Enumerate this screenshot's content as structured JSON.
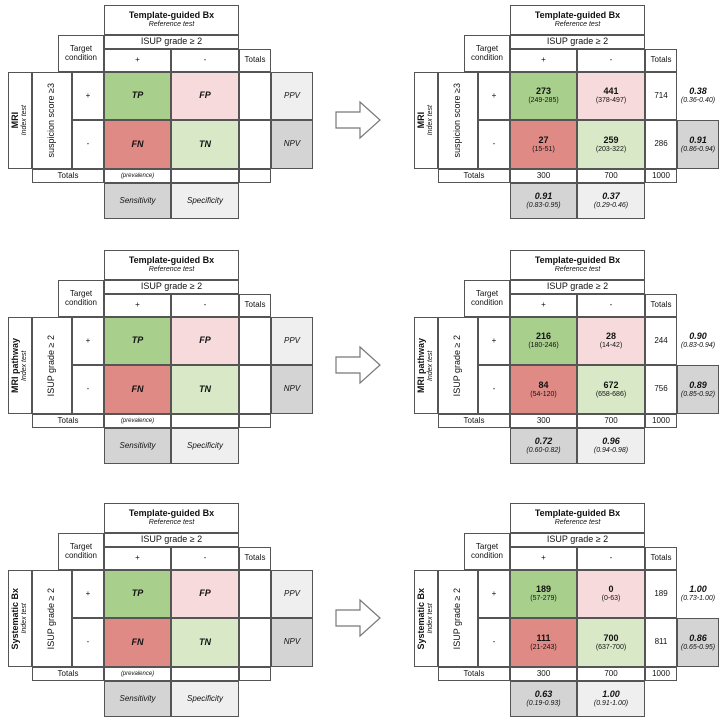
{
  "common": {
    "header_title": "Template-guided Bx",
    "header_subtitle": "Reference test",
    "header_condition": "ISUP grade ≥ 2",
    "target_label": "Target",
    "condition_label": "condition",
    "plus": "+",
    "minus": "-",
    "totals": "Totals",
    "prevalence": "(prevalence)",
    "sensitivity": "Sensitivity",
    "specificity": "Specificity",
    "ppv": "PPV",
    "npv": "NPV",
    "tp": "TP",
    "fp": "FP",
    "fn": "FN",
    "tn": "TN",
    "index_test": "Index test"
  },
  "panels": [
    {
      "name": "MRI",
      "criterion": "suspicion score ≥3",
      "tp": "273",
      "tp_ci": "(249-285)",
      "fp": "441",
      "fp_ci": "(378-497)",
      "fn": "27",
      "fn_ci": "(15-51)",
      "tn": "259",
      "tn_ci": "(203-322)",
      "row_total_pos": "714",
      "row_total_neg": "286",
      "col_total_pos": "300",
      "col_total_neg": "700",
      "grand_total": "1000",
      "ppv": "0.38",
      "ppv_ci": "(0.36-0.40)",
      "npv": "0.91",
      "npv_ci": "(0.86-0.94)",
      "sens": "0.91",
      "sens_ci": "(0.83-0.95)",
      "spec": "0.37",
      "spec_ci": "(0.29-0.46)"
    },
    {
      "name": "MRI pathway",
      "criterion": "ISUP grade ≥ 2",
      "tp": "216",
      "tp_ci": "(180-246)",
      "fp": "28",
      "fp_ci": "(14-42)",
      "fn": "84",
      "fn_ci": "(54-120)",
      "tn": "672",
      "tn_ci": "(658-686)",
      "row_total_pos": "244",
      "row_total_neg": "756",
      "col_total_pos": "300",
      "col_total_neg": "700",
      "grand_total": "1000",
      "ppv": "0.90",
      "ppv_ci": "(0.83-0.94)",
      "npv": "0.89",
      "npv_ci": "(0.85-0.92)",
      "sens": "0.72",
      "sens_ci": "(0.60-0.82)",
      "spec": "0.96",
      "spec_ci": "(0.94-0.98)"
    },
    {
      "name": "Systematic Bx",
      "criterion": "ISUP grade ≥ 2",
      "tp": "189",
      "tp_ci": "(57-279)",
      "fp": "0",
      "fp_ci": "(0-63)",
      "fn": "111",
      "fn_ci": "(21-243)",
      "tn": "700",
      "tn_ci": "(637-700)",
      "row_total_pos": "189",
      "row_total_neg": "811",
      "col_total_pos": "300",
      "col_total_neg": "700",
      "grand_total": "1000",
      "ppv": "1.00",
      "ppv_ci": "(0.73-1.00)",
      "npv": "0.86",
      "npv_ci": "(0.65-0.95)",
      "sens": "0.63",
      "sens_ci": "(0.19-0.93)",
      "spec": "1.00",
      "spec_ci": "(0.91-1.00)"
    }
  ]
}
